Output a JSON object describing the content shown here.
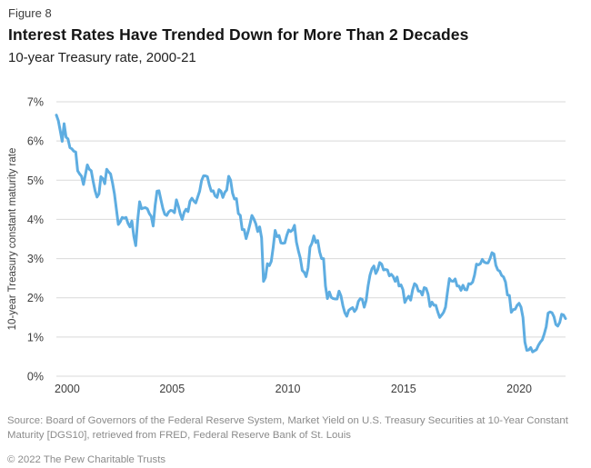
{
  "figure_label": "Figure 8",
  "title": "Interest Rates Have Trended Down for More Than 2 Decades",
  "subtitle": "10-year Treasury rate, 2000-21",
  "source": "Source: Board of Governors of the Federal Reserve System, Market Yield on U.S. Treasury Securities at 10-Year Constant Maturity [DGS10], retrieved from FRED, Federal Reserve Bank of St. Louis",
  "copyright": "© 2022 The Pew Charitable Trusts",
  "chart_data": {
    "type": "line",
    "title": "Interest Rates Have Trended Down for More Than 2 Decades",
    "subtitle": "10-year Treasury rate, 2000-21",
    "xlabel": "",
    "ylabel": "10-year Treasury constant maturity rate",
    "ylim": [
      0,
      7
    ],
    "xlim": [
      2000,
      2022
    ],
    "grid": true,
    "legend_position": "none",
    "y_ticks": [
      "0%",
      "1%",
      "2%",
      "3%",
      "4%",
      "5%",
      "6%",
      "7%"
    ],
    "x_ticks": [
      2000,
      2005,
      2010,
      2015,
      2020
    ],
    "line_color": "#5EADE1",
    "gridline_color": "#d9d9d9",
    "tick_label_color": "#3d3d3d",
    "series": [
      {
        "name": "10-year Treasury rate",
        "frequency": "monthly",
        "start_year": 2000,
        "end_year": 2021,
        "values": [
          6.66,
          6.52,
          6.26,
          5.99,
          6.44,
          6.1,
          6.05,
          5.83,
          5.8,
          5.74,
          5.72,
          5.24,
          5.16,
          5.1,
          4.89,
          5.14,
          5.39,
          5.28,
          5.24,
          4.97,
          4.73,
          4.57,
          4.65,
          5.09,
          5.04,
          4.91,
          5.28,
          5.21,
          5.16,
          4.93,
          4.65,
          4.26,
          3.87,
          3.94,
          4.05,
          4.03,
          4.05,
          3.9,
          3.81,
          3.96,
          3.57,
          3.33,
          3.98,
          4.45,
          4.27,
          4.29,
          4.3,
          4.27,
          4.15,
          4.08,
          3.83,
          4.35,
          4.72,
          4.73,
          4.5,
          4.28,
          4.13,
          4.1,
          4.19,
          4.23,
          4.22,
          4.17,
          4.5,
          4.34,
          4.14,
          4.0,
          4.18,
          4.26,
          4.2,
          4.46,
          4.54,
          4.47,
          4.42,
          4.57,
          4.72,
          4.99,
          5.11,
          5.11,
          5.09,
          4.88,
          4.72,
          4.73,
          4.6,
          4.56,
          4.76,
          4.72,
          4.56,
          4.69,
          4.75,
          5.1,
          5.0,
          4.67,
          4.52,
          4.53,
          4.15,
          4.1,
          3.74,
          3.74,
          3.51,
          3.68,
          3.88,
          4.1,
          4.01,
          3.89,
          3.69,
          3.81,
          3.53,
          2.42,
          2.52,
          2.87,
          2.82,
          2.93,
          3.29,
          3.72,
          3.56,
          3.59,
          3.4,
          3.39,
          3.4,
          3.59,
          3.73,
          3.69,
          3.73,
          3.85,
          3.42,
          3.2,
          3.01,
          2.7,
          2.65,
          2.54,
          2.76,
          3.29,
          3.39,
          3.58,
          3.41,
          3.46,
          3.17,
          3.0,
          3.0,
          2.3,
          1.98,
          2.15,
          2.01,
          1.98,
          1.97,
          1.97,
          2.17,
          2.05,
          1.8,
          1.62,
          1.53,
          1.68,
          1.72,
          1.75,
          1.65,
          1.72,
          1.91,
          1.98,
          1.96,
          1.76,
          1.93,
          2.3,
          2.58,
          2.74,
          2.81,
          2.62,
          2.72,
          2.9,
          2.86,
          2.71,
          2.72,
          2.71,
          2.56,
          2.6,
          2.54,
          2.42,
          2.53,
          2.3,
          2.33,
          2.21,
          1.88,
          1.98,
          2.04,
          1.94,
          2.2,
          2.36,
          2.32,
          2.17,
          2.17,
          2.07,
          2.26,
          2.24,
          2.09,
          1.78,
          1.89,
          1.81,
          1.81,
          1.64,
          1.5,
          1.56,
          1.63,
          1.76,
          2.14,
          2.49,
          2.43,
          2.42,
          2.48,
          2.3,
          2.3,
          2.19,
          2.32,
          2.21,
          2.2,
          2.36,
          2.35,
          2.4,
          2.58,
          2.86,
          2.84,
          2.87,
          2.98,
          2.91,
          2.89,
          2.89,
          3.0,
          3.15,
          3.12,
          2.83,
          2.71,
          2.68,
          2.57,
          2.53,
          2.4,
          2.07,
          2.06,
          1.63,
          1.7,
          1.71,
          1.81,
          1.86,
          1.76,
          1.5,
          0.87,
          0.66,
          0.67,
          0.73,
          0.62,
          0.65,
          0.68,
          0.79,
          0.87,
          0.93,
          1.08,
          1.26,
          1.61,
          1.64,
          1.62,
          1.52,
          1.32,
          1.28,
          1.37,
          1.58,
          1.56,
          1.47
        ]
      }
    ]
  }
}
